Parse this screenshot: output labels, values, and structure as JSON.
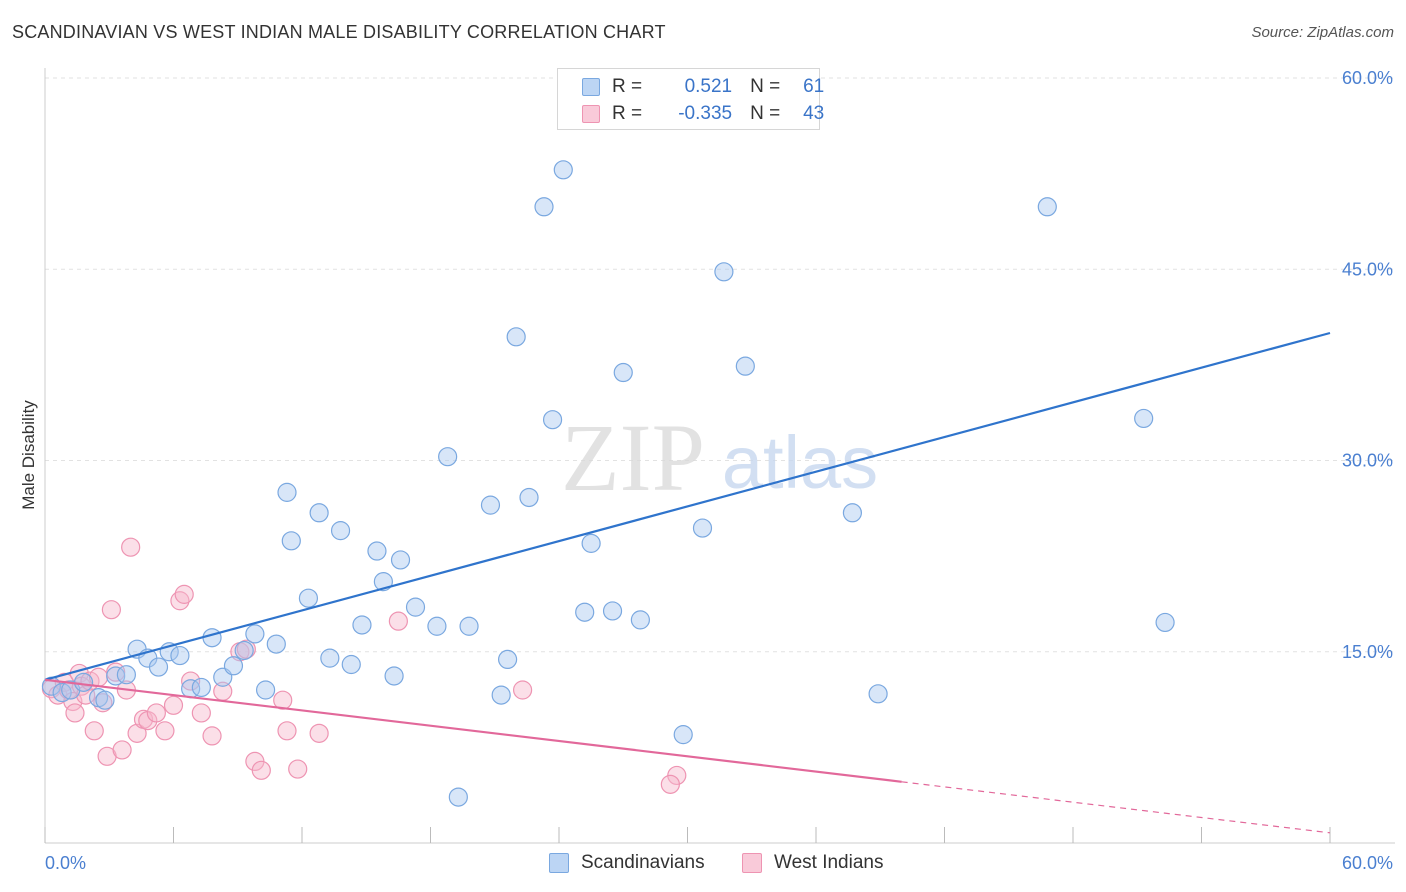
{
  "title": "SCANDINAVIAN VS WEST INDIAN MALE DISABILITY CORRELATION CHART",
  "source": "Source: ZipAtlas.com",
  "watermark": {
    "zip": "ZIP",
    "atlas": "atlas"
  },
  "legend": {
    "rows": [
      {
        "r_label": "R =",
        "r_value": "0.521",
        "n_label": "N =",
        "n_value": "61"
      },
      {
        "r_label": "R =",
        "r_value": "-0.335",
        "n_label": "N =",
        "n_value": "43"
      }
    ]
  },
  "bottom_legend": {
    "a": "Scandinavians",
    "b": "West Indians"
  },
  "colors": {
    "blue_fill": "#a9c8ef",
    "blue_stroke": "#7aa8e0",
    "blue_line": "#2f74cc",
    "pink_fill": "#f6b9cc",
    "pink_stroke": "#ee94b2",
    "pink_line": "#e2689a",
    "tick_text": "#4a7fd0",
    "grid": "#e2e2e2"
  },
  "chart_data": {
    "type": "scatter",
    "title": "SCANDINAVIAN VS WEST INDIAN MALE DISABILITY CORRELATION CHART",
    "xlabel": "",
    "ylabel": "Male Disability",
    "xlim": [
      0,
      60
    ],
    "ylim": [
      0,
      60
    ],
    "x_tick_labels": [
      "0.0%",
      "60.0%"
    ],
    "y_tick_labels": [
      "15.0%",
      "30.0%",
      "45.0%",
      "60.0%"
    ],
    "y_ticks": [
      15,
      30,
      45,
      60
    ],
    "grid": "horizontal dashed",
    "legend_position": "top-center",
    "series": [
      {
        "name": "Scandinavians",
        "r": 0.521,
        "n": 61,
        "trend": {
          "x": [
            0,
            60
          ],
          "y": [
            12.8,
            40.0
          ],
          "dashed_from": null
        },
        "points": [
          [
            0.3,
            12.3
          ],
          [
            0.8,
            11.8
          ],
          [
            1.2,
            12.0
          ],
          [
            1.8,
            12.6
          ],
          [
            2.5,
            11.4
          ],
          [
            2.8,
            11.2
          ],
          [
            3.3,
            13.1
          ],
          [
            3.8,
            13.2
          ],
          [
            4.3,
            15.2
          ],
          [
            4.8,
            14.5
          ],
          [
            5.3,
            13.8
          ],
          [
            5.8,
            15.0
          ],
          [
            6.3,
            14.7
          ],
          [
            6.8,
            12.1
          ],
          [
            7.3,
            12.2
          ],
          [
            7.8,
            16.1
          ],
          [
            8.3,
            13.0
          ],
          [
            8.8,
            13.9
          ],
          [
            9.3,
            15.1
          ],
          [
            9.8,
            16.4
          ],
          [
            10.3,
            12.0
          ],
          [
            10.8,
            15.6
          ],
          [
            11.3,
            27.5
          ],
          [
            11.5,
            23.7
          ],
          [
            12.3,
            19.2
          ],
          [
            12.8,
            25.9
          ],
          [
            13.3,
            14.5
          ],
          [
            13.8,
            24.5
          ],
          [
            14.3,
            14.0
          ],
          [
            14.8,
            17.1
          ],
          [
            15.5,
            22.9
          ],
          [
            15.8,
            20.5
          ],
          [
            16.3,
            13.1
          ],
          [
            16.6,
            22.2
          ],
          [
            17.3,
            18.5
          ],
          [
            18.3,
            17.0
          ],
          [
            18.8,
            30.3
          ],
          [
            19.3,
            3.6
          ],
          [
            19.8,
            17.0
          ],
          [
            20.8,
            26.5
          ],
          [
            21.3,
            11.6
          ],
          [
            21.6,
            14.4
          ],
          [
            22.0,
            39.7
          ],
          [
            22.6,
            27.1
          ],
          [
            23.3,
            49.9
          ],
          [
            23.7,
            33.2
          ],
          [
            24.2,
            52.8
          ],
          [
            25.2,
            18.1
          ],
          [
            25.5,
            23.5
          ],
          [
            26.5,
            18.2
          ],
          [
            27.0,
            36.9
          ],
          [
            27.8,
            17.5
          ],
          [
            29.8,
            8.5
          ],
          [
            30.7,
            24.7
          ],
          [
            31.7,
            44.8
          ],
          [
            32.7,
            37.4
          ],
          [
            37.7,
            25.9
          ],
          [
            38.9,
            11.7
          ],
          [
            46.8,
            49.9
          ],
          [
            51.3,
            33.3
          ],
          [
            52.3,
            17.3
          ]
        ]
      },
      {
        "name": "West Indians",
        "r": -0.335,
        "n": 43,
        "trend": {
          "x": [
            0,
            60
          ],
          "y": [
            12.8,
            0.8
          ],
          "dashed_from": 40
        },
        "points": [
          [
            0.3,
            12.1
          ],
          [
            0.6,
            11.6
          ],
          [
            0.9,
            12.6
          ],
          [
            1.1,
            12.0
          ],
          [
            1.3,
            11.1
          ],
          [
            1.4,
            10.2
          ],
          [
            1.6,
            13.3
          ],
          [
            1.7,
            12.3
          ],
          [
            1.9,
            11.6
          ],
          [
            2.1,
            12.7
          ],
          [
            2.3,
            8.8
          ],
          [
            2.5,
            13.0
          ],
          [
            2.7,
            11.0
          ],
          [
            2.9,
            6.8
          ],
          [
            3.1,
            18.3
          ],
          [
            3.3,
            13.4
          ],
          [
            3.6,
            7.3
          ],
          [
            3.8,
            12.0
          ],
          [
            4.0,
            23.2
          ],
          [
            4.3,
            8.6
          ],
          [
            4.6,
            9.7
          ],
          [
            4.8,
            9.6
          ],
          [
            5.2,
            10.2
          ],
          [
            5.6,
            8.8
          ],
          [
            6.0,
            10.8
          ],
          [
            6.3,
            19.0
          ],
          [
            6.5,
            19.5
          ],
          [
            6.8,
            12.7
          ],
          [
            7.3,
            10.2
          ],
          [
            7.8,
            8.4
          ],
          [
            8.3,
            11.9
          ],
          [
            9.1,
            15.0
          ],
          [
            9.4,
            15.2
          ],
          [
            9.8,
            6.4
          ],
          [
            10.1,
            5.7
          ],
          [
            11.1,
            11.2
          ],
          [
            11.3,
            8.8
          ],
          [
            11.8,
            5.8
          ],
          [
            12.8,
            8.6
          ],
          [
            16.5,
            17.4
          ],
          [
            22.3,
            12.0
          ],
          [
            29.5,
            5.3
          ],
          [
            29.2,
            4.6
          ]
        ]
      }
    ]
  }
}
